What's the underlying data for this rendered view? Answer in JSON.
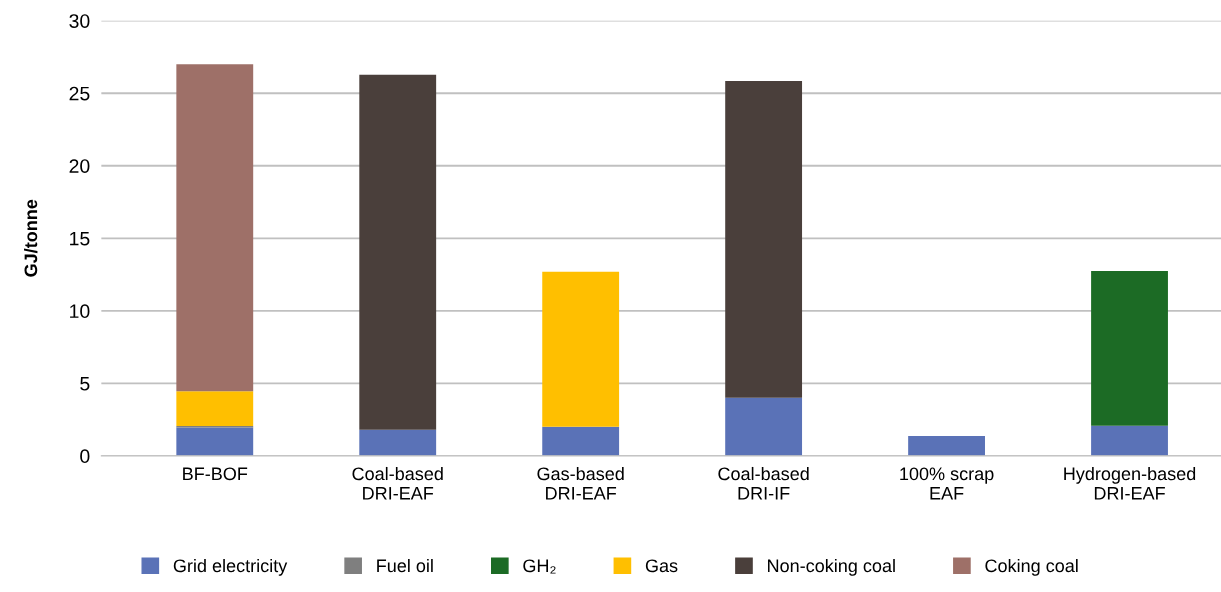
{
  "chart_data": {
    "type": "bar",
    "stacked": true,
    "ylabel": "GJ/tonne",
    "categories": [
      "BF-BOF",
      "Coal-based\nDRI-EAF",
      "Gas-based\nDRI-EAF",
      "Coal-based\nDRI-IF",
      "100% scrap\nEAF",
      "Hydrogen-based\nDRI-EAF"
    ],
    "series": [
      {
        "name": "Grid electricity",
        "color": "#5a72b7",
        "values": [
          1.95,
          1.8,
          2.0,
          4.0,
          1.37,
          2.08
        ]
      },
      {
        "name": "Fuel oil",
        "color": "#7f7f7f",
        "values": [
          0.1,
          null,
          null,
          null,
          null,
          null
        ]
      },
      {
        "name": "GH₂",
        "color": "#1c6b25",
        "values": [
          null,
          null,
          null,
          null,
          null,
          10.67
        ]
      },
      {
        "name": "Gas",
        "color": "#ffbf00",
        "values": [
          2.4,
          null,
          10.7,
          null,
          null,
          null
        ]
      },
      {
        "name": "Non-coking coal",
        "color": "#4a3f3b",
        "values": [
          null,
          24.47,
          null,
          21.85,
          null,
          null
        ]
      },
      {
        "name": "Coking coal",
        "color": "#9e7068",
        "values": [
          22.55,
          null,
          null,
          null,
          null,
          null
        ]
      }
    ],
    "ylim": [
      0,
      30
    ],
    "yticks": [
      0,
      5,
      10,
      15,
      20,
      25,
      30
    ],
    "grid": "y",
    "legend": "bottom"
  }
}
